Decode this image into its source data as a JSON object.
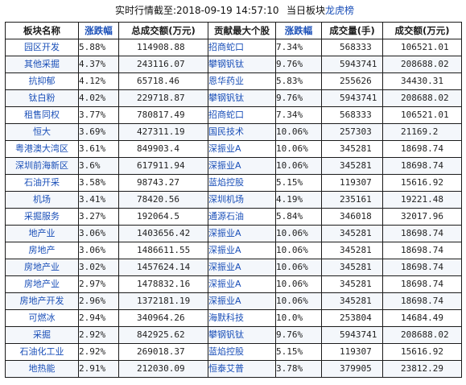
{
  "header": {
    "snapshot_label": "实时行情截至:2018-09-19 14:57:10",
    "board_label_prefix": "当日板块",
    "board_label_accent": "龙虎榜"
  },
  "columns": [
    "板块名称",
    "涨跌幅",
    "总成交额(万元)",
    "贡献最大个股",
    "涨跌幅",
    "成交量(手)",
    "成交额(万元)"
  ],
  "highlight_columns": [
    1,
    4
  ],
  "rows": [
    {
      "sector": "园区开发",
      "change": "5.88%",
      "turnover": "114908.88",
      "top_stock": "招商蛇口",
      "stock_change": "7.34%",
      "volume": "568333",
      "stock_turnover": "106521.01"
    },
    {
      "sector": "其他采掘",
      "change": "4.37%",
      "turnover": "243116.07",
      "top_stock": "攀钢钒钛",
      "stock_change": "9.76%",
      "volume": "5943741",
      "stock_turnover": "208688.02"
    },
    {
      "sector": "抗抑郁",
      "change": "4.12%",
      "turnover": "65718.46",
      "top_stock": "恩华药业",
      "stock_change": "5.83%",
      "volume": "255626",
      "stock_turnover": "34430.31"
    },
    {
      "sector": "钛白粉",
      "change": "4.02%",
      "turnover": "229718.87",
      "top_stock": "攀钢钒钛",
      "stock_change": "9.76%",
      "volume": "5943741",
      "stock_turnover": "208688.02"
    },
    {
      "sector": "租售同权",
      "change": "3.77%",
      "turnover": "780817.49",
      "top_stock": "招商蛇口",
      "stock_change": "7.34%",
      "volume": "568333",
      "stock_turnover": "106521.01"
    },
    {
      "sector": "恒大",
      "change": "3.69%",
      "turnover": "427311.19",
      "top_stock": "国民技术",
      "stock_change": "10.06%",
      "volume": "257303",
      "stock_turnover": "21169.2"
    },
    {
      "sector": "粤港澳大湾区",
      "change": "3.61%",
      "turnover": "849903.4",
      "top_stock": "深振业A",
      "stock_change": "10.06%",
      "volume": "345281",
      "stock_turnover": "18698.74"
    },
    {
      "sector": "深圳前海新区",
      "change": "3.6%",
      "turnover": "617911.94",
      "top_stock": "深振业A",
      "stock_change": "10.06%",
      "volume": "345281",
      "stock_turnover": "18698.74"
    },
    {
      "sector": "石油开采",
      "change": "3.58%",
      "turnover": "98743.27",
      "top_stock": "蓝焰控股",
      "stock_change": "5.15%",
      "volume": "119307",
      "stock_turnover": "15616.92"
    },
    {
      "sector": "机场",
      "change": "3.41%",
      "turnover": "78420.56",
      "top_stock": "深圳机场",
      "stock_change": "4.19%",
      "volume": "235161",
      "stock_turnover": "19221.48"
    },
    {
      "sector": "采掘服务",
      "change": "3.27%",
      "turnover": "192064.5",
      "top_stock": "通源石油",
      "stock_change": "5.84%",
      "volume": "346018",
      "stock_turnover": "32017.96"
    },
    {
      "sector": "地产业",
      "change": "3.06%",
      "turnover": "1403656.42",
      "top_stock": "深振业A",
      "stock_change": "10.06%",
      "volume": "345281",
      "stock_turnover": "18698.74"
    },
    {
      "sector": "房地产",
      "change": "3.06%",
      "turnover": "1486611.55",
      "top_stock": "深振业A",
      "stock_change": "10.06%",
      "volume": "345281",
      "stock_turnover": "18698.74"
    },
    {
      "sector": "房地产业",
      "change": "3.02%",
      "turnover": "1457624.14",
      "top_stock": "深振业A",
      "stock_change": "10.06%",
      "volume": "345281",
      "stock_turnover": "18698.74"
    },
    {
      "sector": "房地产业",
      "change": "2.97%",
      "turnover": "1478832.16",
      "top_stock": "深振业A",
      "stock_change": "10.06%",
      "volume": "345281",
      "stock_turnover": "18698.74"
    },
    {
      "sector": "房地产开发",
      "change": "2.96%",
      "turnover": "1372181.19",
      "top_stock": "深振业A",
      "stock_change": "10.06%",
      "volume": "345281",
      "stock_turnover": "18698.74"
    },
    {
      "sector": "可燃冰",
      "change": "2.94%",
      "turnover": "340964.26",
      "top_stock": "海默科技",
      "stock_change": "10.0%",
      "volume": "253804",
      "stock_turnover": "14684.49"
    },
    {
      "sector": "采掘",
      "change": "2.92%",
      "turnover": "842925.62",
      "top_stock": "攀钢钒钛",
      "stock_change": "9.76%",
      "volume": "5943741",
      "stock_turnover": "208688.02"
    },
    {
      "sector": "石油化工业",
      "change": "2.92%",
      "turnover": "269018.37",
      "top_stock": "蓝焰控股",
      "stock_change": "5.15%",
      "volume": "119307",
      "stock_turnover": "15616.92"
    },
    {
      "sector": "地热能",
      "change": "2.91%",
      "turnover": "212030.09",
      "top_stock": "恒泰艾普",
      "stock_change": "3.78%",
      "volume": "379905",
      "stock_turnover": "23812.29"
    }
  ]
}
